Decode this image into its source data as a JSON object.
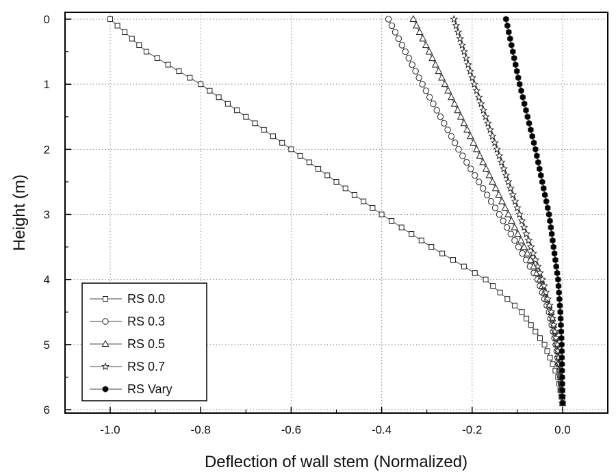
{
  "chart_data": {
    "type": "line",
    "xlabel": "Deflection of wall stem (Normalized)",
    "ylabel": "Height (m)",
    "xlim": [
      -1.1,
      0.1
    ],
    "ylim": [
      0,
      6
    ],
    "y_inverted": true,
    "xticks": [
      -1.0,
      -0.8,
      -0.6,
      -0.4,
      -0.2,
      0.0
    ],
    "xtick_labels": [
      "-1.0",
      "-0.8",
      "-0.6",
      "-0.4",
      "-0.2",
      "0.0"
    ],
    "yticks": [
      0,
      1,
      2,
      3,
      4,
      5,
      6
    ],
    "ytick_labels": [
      "0",
      "1",
      "2",
      "3",
      "4",
      "5",
      "6"
    ],
    "grid": true,
    "legend_position": "bottom-left",
    "series": [
      {
        "name": "RS 0.0",
        "marker": "square",
        "filled": false,
        "height": [
          0,
          0.5,
          1,
          1.5,
          2,
          2.5,
          3,
          3.5,
          4,
          4.5,
          5,
          5.5,
          5.9
        ],
        "deflection": [
          -1.0,
          -0.92,
          -0.8,
          -0.7,
          -0.6,
          -0.5,
          -0.4,
          -0.29,
          -0.17,
          -0.09,
          -0.04,
          -0.01,
          0.0
        ]
      },
      {
        "name": "RS 0.3",
        "marker": "circle",
        "filled": false,
        "height": [
          0,
          1,
          2,
          3,
          4,
          4.5,
          5,
          5.5,
          5.9
        ],
        "deflection": [
          -0.385,
          -0.31,
          -0.23,
          -0.14,
          -0.055,
          -0.03,
          -0.015,
          -0.005,
          0.0
        ]
      },
      {
        "name": "RS 0.5",
        "marker": "triangle",
        "filled": false,
        "height": [
          0,
          1,
          2,
          3,
          4,
          4.5,
          5,
          5.5,
          5.9
        ],
        "deflection": [
          -0.33,
          -0.26,
          -0.19,
          -0.12,
          -0.05,
          -0.025,
          -0.012,
          -0.004,
          0.0
        ]
      },
      {
        "name": "RS 0.7",
        "marker": "star",
        "filled": false,
        "height": [
          0,
          1,
          2,
          3,
          4,
          4.5,
          5,
          5.5,
          5.9
        ],
        "deflection": [
          -0.24,
          -0.195,
          -0.145,
          -0.095,
          -0.045,
          -0.025,
          -0.012,
          -0.004,
          0.0
        ]
      },
      {
        "name": "RS Vary",
        "marker": "hexagon",
        "filled": true,
        "height": [
          0,
          1,
          2,
          3,
          4,
          4.5,
          5,
          5.5,
          5.9
        ],
        "deflection": [
          -0.125,
          -0.095,
          -0.06,
          -0.03,
          -0.01,
          -0.005,
          -0.002,
          -0.001,
          0.0
        ]
      }
    ]
  }
}
